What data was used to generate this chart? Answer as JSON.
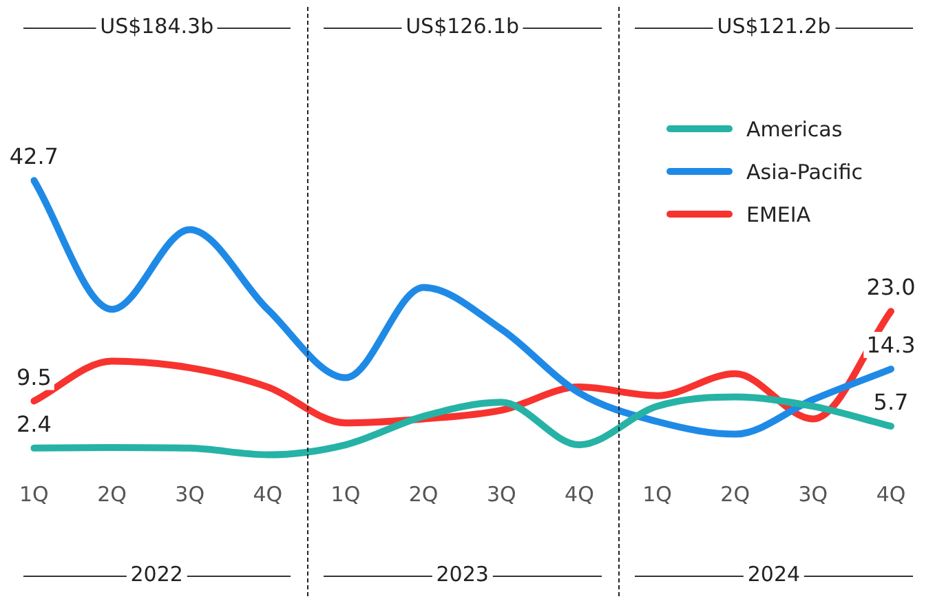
{
  "chart_data": {
    "type": "line",
    "categories": [
      "1Q",
      "2Q",
      "3Q",
      "4Q",
      "1Q",
      "2Q",
      "3Q",
      "4Q",
      "1Q",
      "2Q",
      "3Q",
      "4Q"
    ],
    "series": [
      {
        "name": "Americas",
        "color": "#26b3a6",
        "values": [
          2.4,
          2.5,
          2.4,
          1.4,
          2.9,
          7.2,
          9.3,
          2.9,
          8.7,
          10.1,
          8.7,
          5.7
        ],
        "value_labels": [
          "2.4",
          null,
          null,
          null,
          null,
          null,
          null,
          null,
          null,
          null,
          null,
          "5.7"
        ]
      },
      {
        "name": "Asia-Pacific",
        "color": "#1f8ae6",
        "values": [
          42.7,
          23.3,
          35.3,
          23.3,
          13.0,
          26.6,
          20.3,
          10.7,
          6.4,
          4.5,
          9.7,
          14.3
        ],
        "value_labels": [
          "42.7",
          null,
          null,
          null,
          null,
          null,
          null,
          null,
          null,
          null,
          null,
          "14.3"
        ]
      },
      {
        "name": "EMEIA",
        "color": "#f7332f",
        "values": [
          9.5,
          15.5,
          14.5,
          11.6,
          6.2,
          6.8,
          8.1,
          11.6,
          10.3,
          13.6,
          6.8,
          23.0
        ],
        "value_labels": [
          "9.5",
          null,
          null,
          null,
          null,
          null,
          null,
          null,
          null,
          null,
          null,
          "23.0"
        ]
      }
    ],
    "tick_labels": "x",
    "grid": false,
    "legend": "top right",
    "marker": "none",
    "line_style": "solid",
    "annotations": [
      "US$184.3b",
      "US$126.1b",
      "US$121.2b",
      "2022",
      "2023",
      "2024"
    ]
  }
}
